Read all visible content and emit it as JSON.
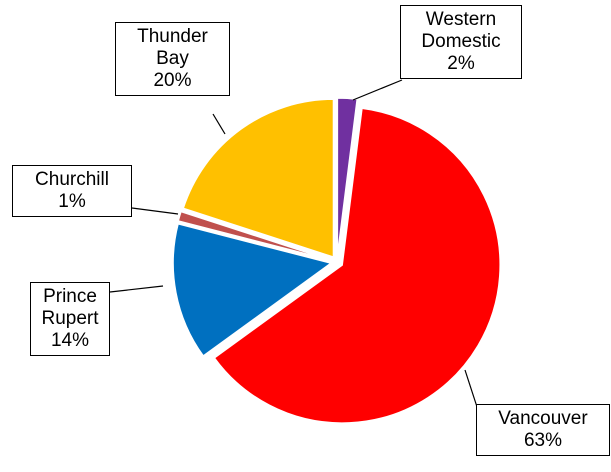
{
  "chart_data": {
    "type": "pie",
    "categories": [
      "Western Domestic",
      "Vancouver",
      "Prince Rupert",
      "Churchill",
      "Thunder Bay"
    ],
    "values": [
      2,
      63,
      14,
      1,
      20
    ],
    "value_labels": [
      "2%",
      "63%",
      "14%",
      "1%",
      "20%"
    ],
    "colors": [
      "#7030a0",
      "#ff0000",
      "#0070c0",
      "#c0504d",
      "#ffc000"
    ]
  }
}
